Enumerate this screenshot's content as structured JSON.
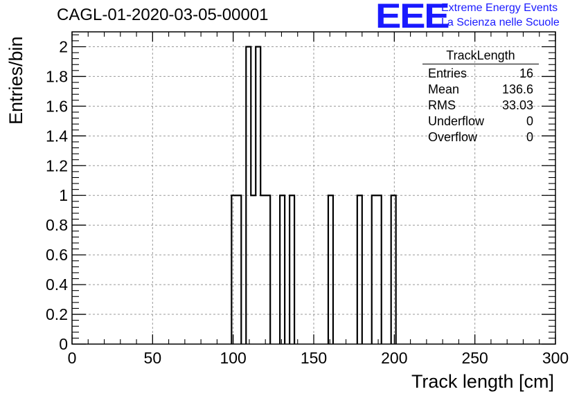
{
  "header": {
    "title": "CAGL-01-2020-03-05-00001",
    "logo_text": "EEE",
    "org_line1": "Extreme Energy Events",
    "org_line2": "La Scienza nelle Scuole",
    "logo_color": "#1a1aff"
  },
  "stats": {
    "name": "TrackLength",
    "rows": [
      {
        "label": "Entries",
        "value": "16"
      },
      {
        "label": "Mean",
        "value": "136.6"
      },
      {
        "label": "RMS",
        "value": "33.03"
      },
      {
        "label": "Underflow",
        "value": "0"
      },
      {
        "label": "Overflow",
        "value": "0"
      }
    ]
  },
  "chart_data": {
    "type": "bar",
    "title": "CAGL-01-2020-03-05-00001",
    "xlabel": "Track length [cm]",
    "ylabel": "Entries/bin",
    "xlim": [
      0,
      300
    ],
    "ylim": [
      0,
      2.1
    ],
    "bin_width": 3,
    "grid": true,
    "x_ticks": [
      "0",
      "50",
      "100",
      "150",
      "200",
      "250",
      "300"
    ],
    "y_ticks": [
      "0",
      "0.2",
      "0.4",
      "0.6",
      "0.8",
      "1",
      "1.2",
      "1.4",
      "1.6",
      "1.8",
      "2"
    ],
    "bins": [
      {
        "x": 99,
        "value": 1
      },
      {
        "x": 102,
        "value": 1
      },
      {
        "x": 108,
        "value": 2
      },
      {
        "x": 111,
        "value": 1
      },
      {
        "x": 114,
        "value": 2
      },
      {
        "x": 117,
        "value": 1
      },
      {
        "x": 120,
        "value": 1
      },
      {
        "x": 129,
        "value": 1
      },
      {
        "x": 135,
        "value": 1
      },
      {
        "x": 159,
        "value": 1
      },
      {
        "x": 177,
        "value": 1
      },
      {
        "x": 186,
        "value": 1
      },
      {
        "x": 189,
        "value": 1
      },
      {
        "x": 198,
        "value": 1
      }
    ]
  }
}
